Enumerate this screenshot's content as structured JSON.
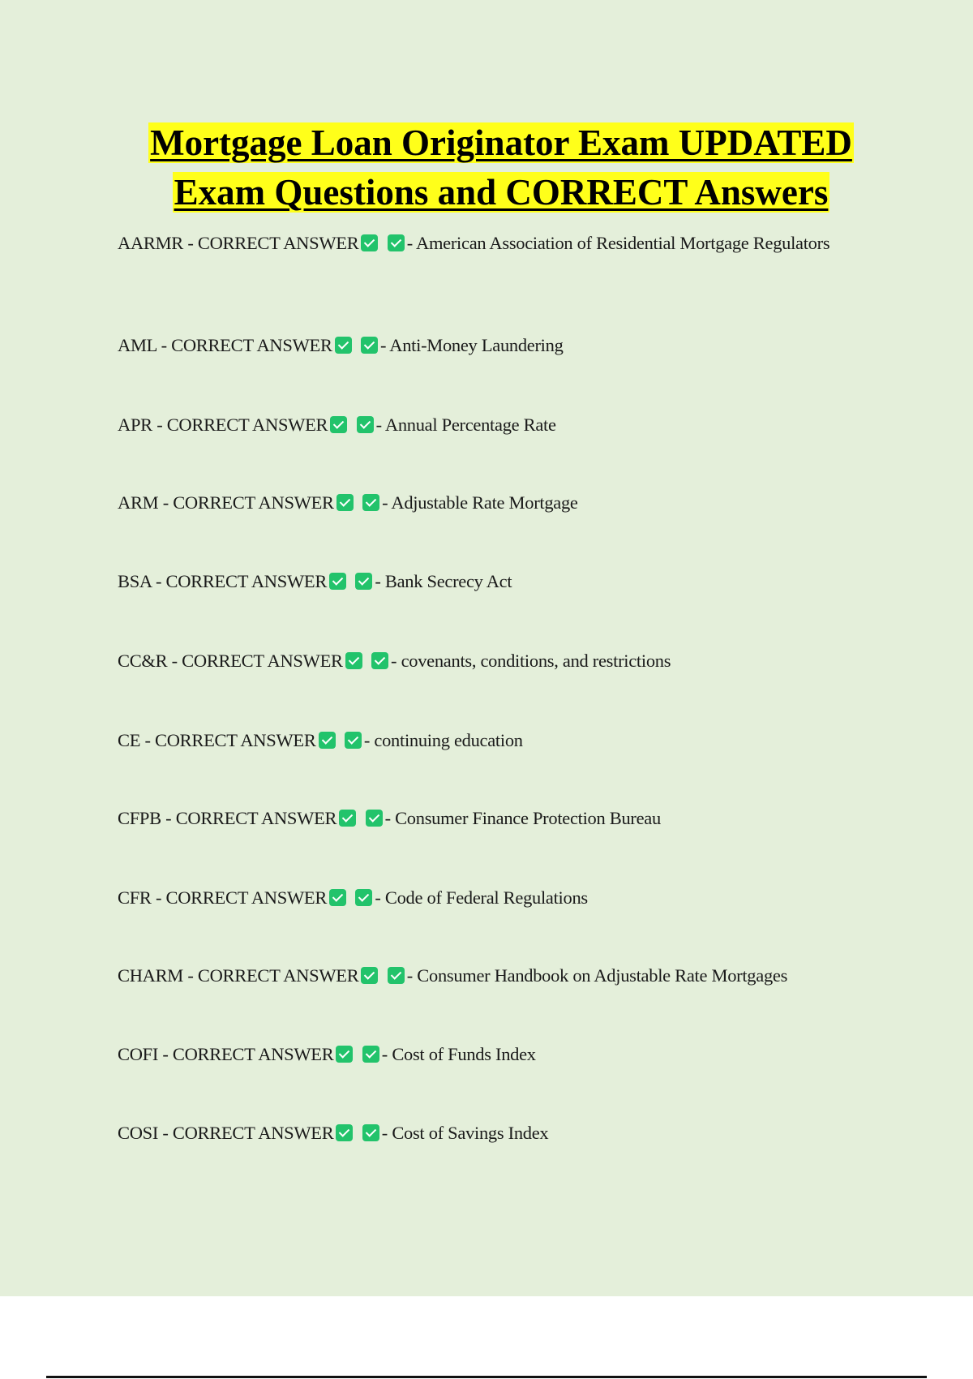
{
  "title": {
    "line1": "Mortgage Loan Originator Exam UPDATED",
    "line2": "Exam Questions and CORRECT Answers"
  },
  "answer_label": "CORRECT ANSWER",
  "icon": "check-mark-button-icon",
  "colors": {
    "background": "#e4efda",
    "highlight": "#ffff1a",
    "check": "#22c36b"
  },
  "items": [
    {
      "term": "AARMR",
      "definition": "American Association of Residential Mortgage Regulators"
    },
    {
      "term": "AML",
      "definition": "Anti-Money Laundering"
    },
    {
      "term": "APR",
      "definition": "Annual Percentage Rate"
    },
    {
      "term": "ARM",
      "definition": "Adjustable Rate Mortgage"
    },
    {
      "term": "BSA",
      "definition": "Bank Secrecy Act"
    },
    {
      "term": "CC&R",
      "definition": "covenants, conditions, and restrictions"
    },
    {
      "term": "CE",
      "definition": "continuing education"
    },
    {
      "term": "CFPB",
      "definition": "Consumer Finance Protection Bureau"
    },
    {
      "term": "CFR",
      "definition": "Code of Federal Regulations"
    },
    {
      "term": "CHARM",
      "definition": "Consumer Handbook on Adjustable Rate Mortgages"
    },
    {
      "term": "COFI",
      "definition": "Cost of Funds Index"
    },
    {
      "term": "COSI",
      "definition": "Cost of Savings Index"
    }
  ]
}
